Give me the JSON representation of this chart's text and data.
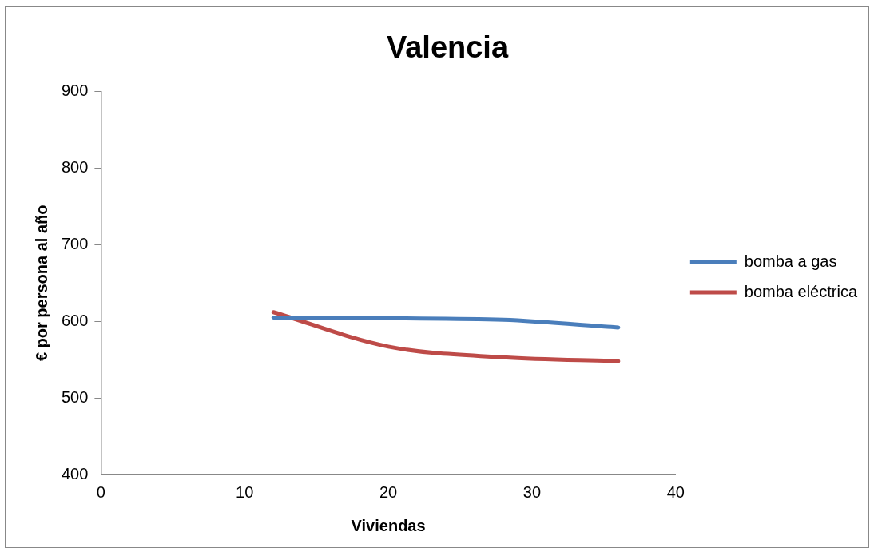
{
  "chart_data": {
    "type": "line",
    "title": "Valencia",
    "xlabel": "Viviendas",
    "ylabel": "€ por persona al año",
    "x": [
      12,
      20,
      28,
      36
    ],
    "series": [
      {
        "name": "bomba a gas",
        "color": "#4a7ebb",
        "values": [
          605,
          604,
          602,
          592
        ]
      },
      {
        "name": "bomba eléctrica",
        "color": "#be4b48",
        "values": [
          612,
          567,
          553,
          548
        ]
      }
    ],
    "xlim": [
      0,
      40
    ],
    "xticks": [
      0,
      10,
      20,
      30,
      40
    ],
    "ylim": [
      400,
      900
    ],
    "yticks": [
      400,
      500,
      600,
      700,
      800,
      900
    ],
    "grid": false,
    "legend": "right",
    "marker": "none",
    "line_style": "solid"
  }
}
